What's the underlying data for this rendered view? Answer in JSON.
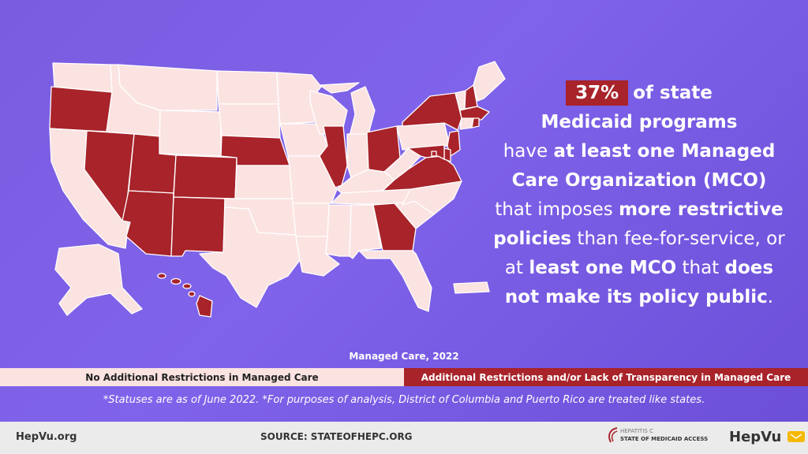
{
  "headline": {
    "percent": "37%",
    "l1": "of state",
    "l2": "Medicaid programs",
    "l3a": "have ",
    "l3b": "at least one Managed",
    "l4": "Care Organization (MCO)",
    "l5a": "that imposes ",
    "l5b": "more restrictive",
    "l6a": "policies",
    "l6b": " than fee-for-service, or",
    "l7a": "at ",
    "l7b": "least one MCO",
    "l7c": " that ",
    "l7d": "does",
    "l8a": "not make its policy public",
    "l8b": "."
  },
  "legend": {
    "title": "Managed Care, 2022",
    "no_restrictions": "No Additional Restrictions in Managed Care",
    "restrictions": "Additional Restrictions and/or Lack of Transparency in Managed Care"
  },
  "footnote": "*Statuses are as of June 2022.    *For purposes of analysis, District of Columbia and Puerto Rico are treated like states.",
  "footer": {
    "site": "HepVu.org",
    "source": "SOURCE: STATEOFHEPC.ORG",
    "logo_line1": "HEPATITIS C",
    "logo_line2": "STATE OF MEDICAID ACCESS",
    "brand_a": "Hep",
    "brand_b": "Vu"
  },
  "colors": {
    "restricted": "#a8232a",
    "not_restricted": "#fbe3e1",
    "background": "#7f63ea"
  },
  "icons": [
    "hepvu-logo-icon",
    "state-of-medicaid-access-logo-icon"
  ],
  "states": [
    {
      "id": "WA",
      "restricted": false
    },
    {
      "id": "OR",
      "restricted": true
    },
    {
      "id": "CA",
      "restricted": false
    },
    {
      "id": "NV",
      "restricted": true
    },
    {
      "id": "ID",
      "restricted": false
    },
    {
      "id": "MT",
      "restricted": false
    },
    {
      "id": "WY",
      "restricted": false
    },
    {
      "id": "UT",
      "restricted": true
    },
    {
      "id": "CO",
      "restricted": true
    },
    {
      "id": "AZ",
      "restricted": true
    },
    {
      "id": "NM",
      "restricted": true
    },
    {
      "id": "ND",
      "restricted": false
    },
    {
      "id": "SD",
      "restricted": false
    },
    {
      "id": "NE",
      "restricted": true
    },
    {
      "id": "KS",
      "restricted": false
    },
    {
      "id": "OK",
      "restricted": false
    },
    {
      "id": "TX",
      "restricted": false
    },
    {
      "id": "MN",
      "restricted": false
    },
    {
      "id": "IA",
      "restricted": false
    },
    {
      "id": "MO",
      "restricted": false
    },
    {
      "id": "AR",
      "restricted": false
    },
    {
      "id": "LA",
      "restricted": false
    },
    {
      "id": "WI",
      "restricted": false
    },
    {
      "id": "IL",
      "restricted": true
    },
    {
      "id": "MI",
      "restricted": false
    },
    {
      "id": "IN",
      "restricted": false
    },
    {
      "id": "OH",
      "restricted": true
    },
    {
      "id": "KY",
      "restricted": false
    },
    {
      "id": "TN",
      "restricted": false
    },
    {
      "id": "MS",
      "restricted": false
    },
    {
      "id": "AL",
      "restricted": false
    },
    {
      "id": "GA",
      "restricted": true
    },
    {
      "id": "FL",
      "restricted": false
    },
    {
      "id": "SC",
      "restricted": false
    },
    {
      "id": "NC",
      "restricted": false
    },
    {
      "id": "VA",
      "restricted": true
    },
    {
      "id": "WV",
      "restricted": false
    },
    {
      "id": "PA",
      "restricted": false
    },
    {
      "id": "NY",
      "restricted": true
    },
    {
      "id": "VT",
      "restricted": false
    },
    {
      "id": "NH",
      "restricted": true
    },
    {
      "id": "ME",
      "restricted": false
    },
    {
      "id": "MA",
      "restricted": true
    },
    {
      "id": "CT",
      "restricted": false
    },
    {
      "id": "RI",
      "restricted": true
    },
    {
      "id": "NJ",
      "restricted": true
    },
    {
      "id": "DE",
      "restricted": true
    },
    {
      "id": "MD",
      "restricted": true
    },
    {
      "id": "DC",
      "restricted": true
    },
    {
      "id": "AK",
      "restricted": false
    },
    {
      "id": "HI",
      "restricted": true
    },
    {
      "id": "PR",
      "restricted": false
    }
  ]
}
